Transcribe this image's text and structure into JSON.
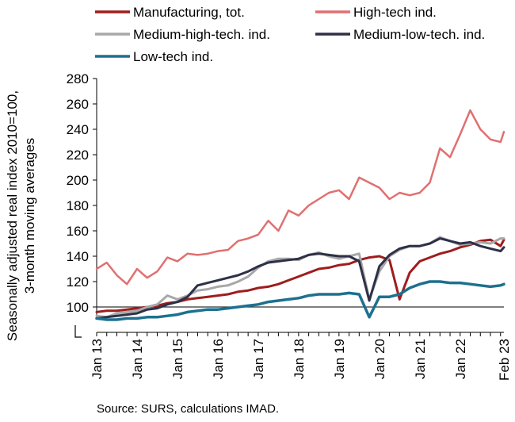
{
  "chart_data": {
    "type": "line",
    "ylabel_lines": [
      "Seasonally adjusted real index 2010=100,",
      "3-month moving averages"
    ],
    "ylim": [
      80,
      280
    ],
    "yticks": [
      100,
      120,
      140,
      160,
      180,
      200,
      220,
      240,
      260,
      280
    ],
    "ytick_labels": [
      "100",
      "120",
      "140",
      "160",
      "180",
      "200",
      "220",
      "240",
      "260",
      "280"
    ],
    "y_axis_break": true,
    "reference_line": 100,
    "grid": false,
    "legend_position": "top",
    "x_range": [
      "2013-01",
      "2023-02"
    ],
    "xtick_labels": [
      "Jan 13",
      "Jan 14",
      "Jan 15",
      "Jan 16",
      "Jan 17",
      "Jan 18",
      "Jan 19",
      "Jan 20",
      "Jan 21",
      "Jan 22",
      "Feb 23"
    ],
    "xtick_months": [
      0,
      12,
      24,
      36,
      48,
      60,
      72,
      84,
      96,
      108,
      121
    ],
    "x_point_step": "quarterly, 2013-01 to 2023-01, then 2023-02",
    "series": [
      {
        "name": "Manufacturing, tot.",
        "color": "#9e1d1d",
        "width": 3,
        "values": [
          96,
          97,
          97,
          98,
          99,
          100,
          101,
          103,
          104,
          106,
          107,
          108,
          109,
          110,
          112,
          113,
          115,
          116,
          118,
          121,
          124,
          127,
          130,
          131,
          133,
          134,
          137,
          139,
          140,
          137,
          106,
          127,
          136,
          139,
          142,
          144,
          147,
          149,
          152,
          153,
          148,
          153
        ]
      },
      {
        "name": "High-tech ind.",
        "color": "#e07070",
        "width": 2.5,
        "values": [
          130,
          135,
          125,
          118,
          130,
          123,
          128,
          139,
          136,
          142,
          141,
          142,
          144,
          145,
          152,
          154,
          157,
          168,
          160,
          176,
          172,
          180,
          185,
          190,
          192,
          185,
          202,
          198,
          194,
          185,
          190,
          188,
          190,
          198,
          225,
          218,
          236,
          255,
          240,
          232,
          230,
          238
        ]
      },
      {
        "name": "Medium-high-tech. ind.",
        "color": "#a8a8a8",
        "width": 3,
        "values": [
          93,
          92,
          95,
          96,
          97,
          100,
          102,
          109,
          106,
          109,
          113,
          114,
          116,
          117,
          120,
          124,
          131,
          136,
          138,
          138,
          137,
          141,
          143,
          140,
          138,
          140,
          142,
          106,
          128,
          140,
          145,
          148,
          148,
          150,
          155,
          152,
          149,
          150,
          151,
          150,
          154,
          154
        ]
      },
      {
        "name": "Medium-low-tech. ind.",
        "color": "#2e3048",
        "width": 3,
        "values": [
          91,
          92,
          93,
          94,
          95,
          98,
          99,
          102,
          104,
          108,
          117,
          119,
          121,
          123,
          125,
          128,
          132,
          135,
          136,
          137,
          138,
          141,
          142,
          141,
          140,
          140,
          136,
          105,
          132,
          141,
          146,
          148,
          148,
          150,
          154,
          152,
          150,
          151,
          148,
          146,
          144,
          147
        ]
      },
      {
        "name": "Low-tech ind.",
        "color": "#1d7090",
        "width": 3.5,
        "values": [
          91,
          90,
          90,
          91,
          91,
          92,
          92,
          93,
          94,
          96,
          97,
          98,
          98,
          99,
          100,
          101,
          102,
          104,
          105,
          106,
          107,
          109,
          110,
          110,
          110,
          111,
          110,
          92,
          108,
          108,
          110,
          115,
          118,
          120,
          120,
          119,
          119,
          118,
          117,
          116,
          117,
          118
        ]
      }
    ]
  },
  "source_text": "Source: SURS, calculations IMAD."
}
